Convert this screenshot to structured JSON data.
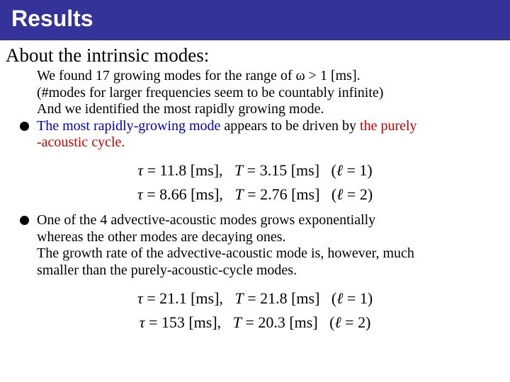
{
  "title": "Results",
  "subtitle": "About the intrinsic modes:",
  "p1_l1": "We found 17 growing modes for the range of ω > 1 [ms].",
  "p1_l2": "(#modes for larger frequencies seem to be countably infinite)",
  "p1_l3": "And we identified the most rapidly growing mode.",
  "b1_a": "The most rapidly-growing mode",
  "b1_b": " appears to be driven by ",
  "b1_c": "the purely",
  "b1_d": "-acoustic cycle.",
  "eq1_l1": "τ = 11.8 [ms],   T = 3.15 [ms]   (ℓ = 1)",
  "eq1_l2": "τ = 8.66 [ms],   T = 2.76 [ms]   (ℓ = 2)",
  "b2_l1": "One of the 4 advective-acoustic modes grows exponentially",
  "b2_l2": "whereas the other modes are decaying ones.",
  "b2_l3": "The growth rate of the advective-acoustic mode is, however, much",
  "b2_l4": "smaller than the purely-acoustic-cycle modes.",
  "eq2_l1": "τ = 21.1 [ms],   T = 21.8 [ms]   (ℓ = 1)",
  "eq2_l2": "τ = 153 [ms],   T = 20.3 [ms]   (ℓ = 2)",
  "colors": {
    "title_bg": "#333399",
    "title_fg": "#ffffff",
    "body_fg": "#000000",
    "accent_blue": "#0000cc",
    "accent_red": "#cc0000",
    "background": "#ffffff"
  },
  "fonts": {
    "title_family": "Arial",
    "title_size_pt": 32,
    "title_weight": "bold",
    "body_family": "Times New Roman",
    "subtitle_size_pt": 27,
    "body_size_pt": 20,
    "equation_size_pt": 22
  }
}
